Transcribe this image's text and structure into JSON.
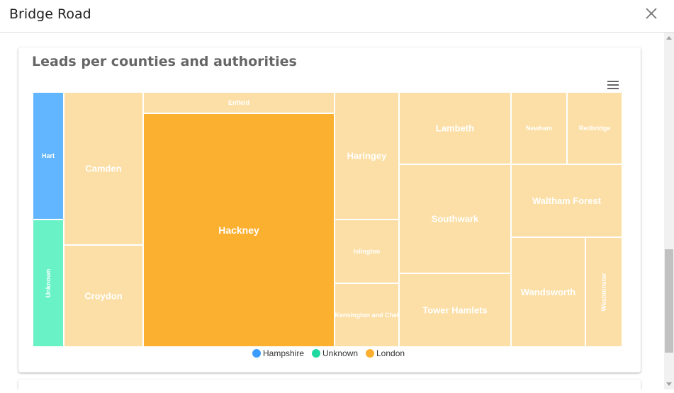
{
  "header": {
    "title": "Bridge Road"
  },
  "card": {
    "title": "Leads per counties and authorities"
  },
  "colors": {
    "Hampshire": "#3b9cff",
    "Unknown": "#20d9a0",
    "London": "#fbb030"
  },
  "chart_data": {
    "type": "treemap",
    "title": "Leads per counties and authorities",
    "legend": {
      "placement": "bottom-center",
      "entries": [
        "Hampshire",
        "Unknown",
        "London"
      ]
    },
    "cells": [
      {
        "label": "Hart",
        "group": "Hampshire",
        "value": 28
      },
      {
        "label": "Unknown",
        "group": "Unknown",
        "value": 28
      },
      {
        "label": "Camden",
        "group": "London",
        "value": 78
      },
      {
        "label": "Croydon",
        "group": "London",
        "value": 69
      },
      {
        "label": "Enfield",
        "group": "London",
        "value": 27
      },
      {
        "label": "Hackney",
        "group": "London",
        "value": 318,
        "highlighted": true
      },
      {
        "label": "Haringey",
        "group": "London",
        "value": 50
      },
      {
        "label": "Islington",
        "group": "London",
        "value": 25
      },
      {
        "label": "Kensington and Chelsea",
        "display": "Kensington and Chel",
        "group": "London",
        "value": 25
      },
      {
        "label": "Lambeth",
        "group": "London",
        "value": 50
      },
      {
        "label": "Southwark",
        "group": "London",
        "value": 75
      },
      {
        "label": "Tower Hamlets",
        "group": "London",
        "value": 50
      },
      {
        "label": "Newham",
        "group": "London",
        "value": 25
      },
      {
        "label": "Redbridge",
        "group": "London",
        "value": 25
      },
      {
        "label": "Waltham Forest",
        "group": "London",
        "value": 50
      },
      {
        "label": "Wandsworth",
        "group": "London",
        "value": 50
      },
      {
        "label": "Westminster",
        "group": "London",
        "value": 25
      }
    ]
  }
}
